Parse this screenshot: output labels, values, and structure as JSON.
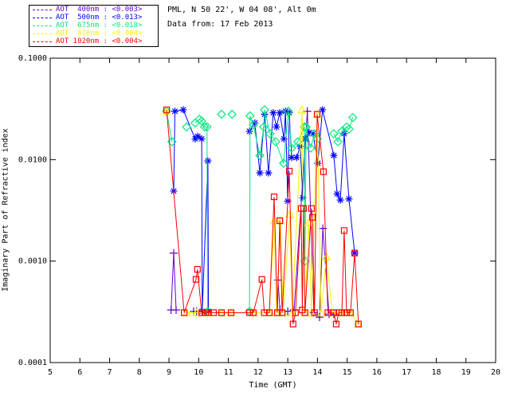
{
  "header": {
    "site": "PML, N 50 22', W 04 08', Alt 0m",
    "date": "Data from: 17 Feb 2013"
  },
  "axes": {
    "xlabel": "Time (GMT)",
    "ylabel": "Imaginary Part of Refractive index"
  },
  "chart_data": {
    "type": "line",
    "xlabel": "Time (GMT)",
    "ylabel": "Imaginary Part of Refractive index",
    "xlim": [
      5,
      20
    ],
    "ylim": [
      0.0001,
      0.1
    ],
    "yscale": "log",
    "grid": false,
    "legend_position": "top-left",
    "xticks": [
      5,
      6,
      7,
      8,
      9,
      10,
      11,
      12,
      13,
      14,
      15,
      16,
      17,
      18,
      19,
      20
    ],
    "yticks": [
      {
        "value": 0.1,
        "label": "0.1000"
      },
      {
        "value": 0.01,
        "label": "0.0100"
      },
      {
        "value": 0.001,
        "label": "0.0010"
      },
      {
        "value": 0.0001,
        "label": "0.0001"
      }
    ],
    "series": [
      {
        "name": "AOT 400nm",
        "legend_label": "AOT  400nm",
        "legend_value": "<0.003>",
        "color": "#6200d0",
        "marker": "plus",
        "segments": [
          [
            [
              9.07,
              0.00033
            ],
            [
              9.16,
              0.0012
            ],
            [
              9.24,
              0.00033
            ]
          ],
          [
            [
              9.83,
              0.00032
            ],
            [
              9.93,
              0.00032
            ]
          ],
          [
            [
              12.67,
              0.00065
            ],
            [
              12.74,
              0.00033
            ],
            [
              13.0,
              0.00032
            ],
            [
              13.21,
              0.00033
            ],
            [
              13.66,
              0.03
            ],
            [
              13.88,
              0.00031
            ],
            [
              14.07,
              0.00028
            ],
            [
              14.18,
              0.0021
            ],
            [
              14.39,
              0.0003
            ],
            [
              14.55,
              0.0003
            ]
          ]
        ]
      },
      {
        "name": "AOT 500nm",
        "legend_label": "AOT  500nm",
        "legend_value": "<0.013>",
        "color": "#0000ff",
        "marker": "asterisk",
        "segments": [
          [
            [
              9.16,
              0.0049
            ],
            [
              9.2,
              0.03
            ],
            [
              9.48,
              0.031
            ],
            [
              9.88,
              0.016
            ],
            [
              9.97,
              0.017
            ],
            [
              10.1,
              0.016
            ],
            [
              10.12,
              0.00032
            ],
            [
              10.31,
              0.0097
            ],
            [
              10.33,
              0.00032
            ]
          ],
          [
            [
              11.71,
              0.019
            ],
            [
              11.89,
              0.023
            ],
            [
              12.06,
              0.0074
            ],
            [
              12.22,
              0.028
            ],
            [
              12.35,
              0.0074
            ],
            [
              12.51,
              0.029
            ],
            [
              12.62,
              0.021
            ],
            [
              12.73,
              0.029
            ],
            [
              12.87,
              0.016
            ],
            [
              12.92,
              0.03
            ],
            [
              13.0,
              0.0039
            ],
            [
              13.05,
              0.029
            ],
            [
              13.13,
              0.0105
            ],
            [
              13.3,
              0.0105
            ],
            [
              13.42,
              0.0135
            ],
            [
              13.51,
              0.0042
            ],
            [
              13.59,
              0.016
            ],
            [
              13.72,
              0.0185
            ],
            [
              13.85,
              0.018
            ],
            [
              14.01,
              0.0092
            ],
            [
              14.17,
              0.031
            ],
            [
              14.55,
              0.011
            ],
            [
              14.66,
              0.0046
            ],
            [
              14.77,
              0.004
            ],
            [
              14.9,
              0.018
            ],
            [
              15.06,
              0.0041
            ],
            [
              15.25,
              0.0012
            ]
          ]
        ]
      },
      {
        "name": "AOT 675nm",
        "legend_label": "AOT  675nm",
        "legend_value": "<0.018>",
        "color": "#00e87e",
        "marker": "diamond",
        "segments": [
          [
            [
              8.92,
              0.03
            ],
            [
              9.1,
              0.015
            ]
          ],
          [
            [
              9.59,
              0.021
            ]
          ],
          [
            [
              9.88,
              0.023
            ],
            [
              10.02,
              0.025
            ],
            [
              10.1,
              0.024
            ],
            [
              10.2,
              0.021
            ],
            [
              10.28,
              0.021
            ],
            [
              10.3,
              0.00032
            ]
          ],
          [
            [
              10.77,
              0.028
            ]
          ],
          [
            [
              11.12,
              0.028
            ]
          ],
          [
            [
              11.71,
              0.00032
            ],
            [
              11.73,
              0.027
            ],
            [
              11.84,
              0.022
            ],
            [
              12.06,
              0.011
            ],
            [
              12.19,
              0.021
            ],
            [
              12.22,
              0.031
            ],
            [
              12.4,
              0.018
            ],
            [
              12.59,
              0.015
            ],
            [
              12.86,
              0.0092
            ],
            [
              13.02,
              0.03
            ],
            [
              13.13,
              0.013
            ],
            [
              13.34,
              0.015
            ],
            [
              13.56,
              0.021
            ],
            [
              13.58,
              0.001
            ],
            [
              13.62,
              0.021
            ],
            [
              13.77,
              0.013
            ],
            [
              13.9,
              0.018
            ],
            [
              14.0,
              0.016
            ]
          ],
          [
            [
              14.55,
              0.018
            ],
            [
              14.69,
              0.015
            ],
            [
              14.82,
              0.019
            ],
            [
              14.98,
              0.021
            ],
            [
              15.06,
              0.02
            ],
            [
              15.19,
              0.026
            ]
          ]
        ]
      },
      {
        "name": "AOT 870nm",
        "legend_label": "AOT  870nm",
        "legend_value": "<0.004>",
        "color": "#f6f600",
        "marker": "triangle",
        "segments": [
          [
            [
              8.92,
              0.03
            ]
          ],
          [
            [
              9.59,
              0.00031
            ],
            [
              9.93,
              0.00031
            ],
            [
              10.28,
              0.00031
            ],
            [
              10.77,
              0.00031
            ],
            [
              11.09,
              0.00031
            ],
            [
              11.84,
              0.00031
            ],
            [
              12.38,
              0.00031
            ],
            [
              12.54,
              0.0025
            ],
            [
              12.62,
              0.00031
            ],
            [
              12.76,
              0.0025
            ],
            [
              12.84,
              0.00031
            ],
            [
              13.07,
              0.0029
            ],
            [
              13.15,
              0.00031
            ],
            [
              13.48,
              0.031
            ],
            [
              13.58,
              0.00031
            ],
            [
              13.7,
              0.0024
            ],
            [
              13.8,
              0.00031
            ],
            [
              13.99,
              0.028
            ],
            [
              14.12,
              0.00031
            ],
            [
              14.3,
              0.0011
            ],
            [
              14.5,
              0.00031
            ],
            [
              14.82,
              0.00031
            ],
            [
              15.11,
              0.00031
            ],
            [
              15.38,
              0.00024
            ]
          ]
        ]
      },
      {
        "name": "AOT 1020nm",
        "legend_label": "AOT 1020nm",
        "legend_value": "<0.004>",
        "color": "#ff0000",
        "marker": "square",
        "segments": [
          [
            [
              8.92,
              0.031
            ],
            [
              9.51,
              0.00031
            ],
            [
              9.91,
              0.00066
            ],
            [
              9.96,
              0.00083
            ],
            [
              10.1,
              0.00031
            ],
            [
              10.23,
              0.00031
            ],
            [
              10.33,
              0.00031
            ],
            [
              10.5,
              0.00031
            ],
            [
              10.77,
              0.00031
            ],
            [
              11.09,
              0.00031
            ],
            [
              11.71,
              0.00031
            ],
            [
              11.84,
              0.00031
            ],
            [
              12.13,
              0.00066
            ],
            [
              12.21,
              0.00031
            ],
            [
              12.38,
              0.00031
            ],
            [
              12.54,
              0.0043
            ],
            [
              12.65,
              0.00031
            ],
            [
              12.73,
              0.0025
            ],
            [
              12.81,
              0.00031
            ],
            [
              13.05,
              0.0077
            ],
            [
              13.18,
              0.00024
            ],
            [
              13.26,
              0.00031
            ],
            [
              13.45,
              0.0033
            ],
            [
              13.49,
              0.00033
            ],
            [
              13.53,
              0.0033
            ],
            [
              13.58,
              0.00031
            ],
            [
              13.8,
              0.0033
            ],
            [
              13.83,
              0.0027
            ],
            [
              13.9,
              0.00031
            ],
            [
              13.99,
              0.028
            ],
            [
              14.2,
              0.0076
            ],
            [
              14.35,
              0.00031
            ],
            [
              14.55,
              0.00031
            ],
            [
              14.63,
              0.00024
            ],
            [
              14.72,
              0.00031
            ],
            [
              14.82,
              0.00031
            ],
            [
              14.9,
              0.002
            ],
            [
              14.98,
              0.00031
            ],
            [
              15.11,
              0.00031
            ],
            [
              15.25,
              0.0012
            ],
            [
              15.38,
              0.00024
            ]
          ]
        ]
      }
    ]
  }
}
